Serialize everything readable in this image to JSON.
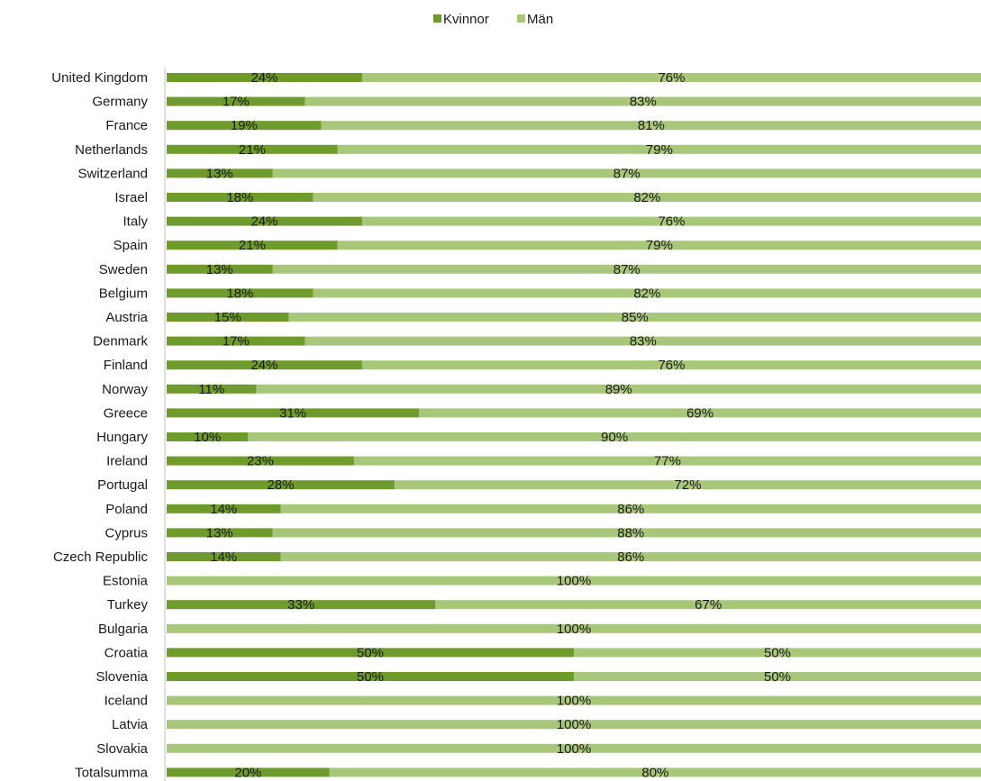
{
  "chart_data": {
    "type": "bar",
    "orientation": "horizontal",
    "stacked": "percent",
    "legend_position": "top",
    "grid": false,
    "categories": [
      "United Kingdom",
      "Germany",
      "France",
      "Netherlands",
      "Switzerland",
      "Israel",
      "Italy",
      "Spain",
      "Sweden",
      "Belgium",
      "Austria",
      "Denmark",
      "Finland",
      "Norway",
      "Greece",
      "Hungary",
      "Ireland",
      "Portugal",
      "Poland",
      "Cyprus",
      "Czech Republic",
      "Estonia",
      "Turkey",
      "Bulgaria",
      "Croatia",
      "Slovenia",
      "Iceland",
      "Latvia",
      "Slovakia",
      "Totalsumma"
    ],
    "series": [
      {
        "name": "Kvinnor",
        "color": "#6f9a2c",
        "values": [
          24,
          17,
          19,
          21,
          13,
          18,
          24,
          21,
          13,
          18,
          15,
          17,
          24,
          11,
          31,
          10,
          23,
          28,
          14,
          13,
          14,
          0,
          33,
          0,
          50,
          50,
          0,
          0,
          0,
          20
        ],
        "labels": [
          "24%",
          "17%",
          "19%",
          "21%",
          "13%",
          "18%",
          "24%",
          "21%",
          "13%",
          "18%",
          "15%",
          "17%",
          "24%",
          "11%",
          "31%",
          "10%",
          "23%",
          "28%",
          "14%",
          "13%",
          "14%",
          "",
          "33%",
          "",
          "50%",
          "50%",
          "",
          "",
          "",
          "20%"
        ]
      },
      {
        "name": "Män",
        "color": "#a9c77a",
        "values": [
          76,
          83,
          81,
          79,
          87,
          82,
          76,
          79,
          87,
          82,
          85,
          83,
          76,
          89,
          69,
          90,
          77,
          72,
          86,
          88,
          86,
          100,
          67,
          100,
          50,
          50,
          100,
          100,
          100,
          80
        ],
        "labels": [
          "76%",
          "83%",
          "81%",
          "79%",
          "87%",
          "82%",
          "76%",
          "79%",
          "87%",
          "82%",
          "85%",
          "83%",
          "76%",
          "89%",
          "69%",
          "90%",
          "77%",
          "72%",
          "86%",
          "88%",
          "86%",
          "100%",
          "67%",
          "100%",
          "50%",
          "50%",
          "100%",
          "100%",
          "100%",
          "80%"
        ]
      }
    ],
    "xlim": [
      0,
      100
    ]
  }
}
